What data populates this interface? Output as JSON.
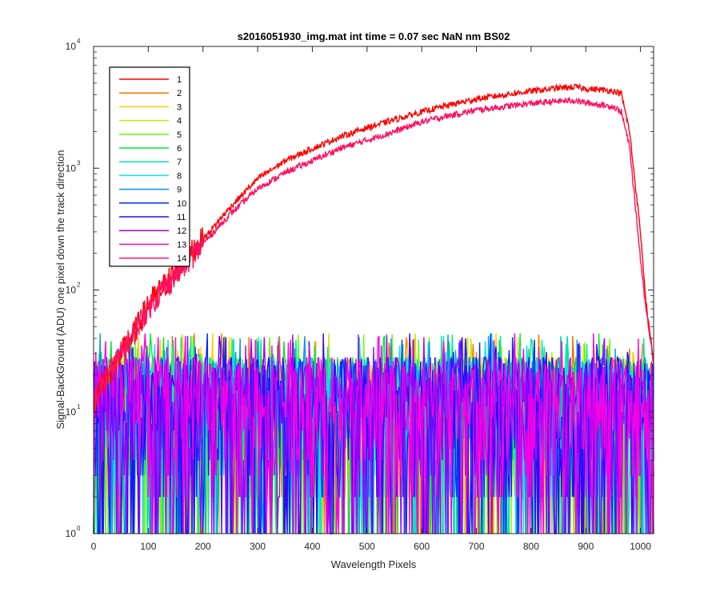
{
  "chart_data": {
    "type": "line",
    "title": "s2016051930_img.mat int time = 0.07 sec  NaN nm BS02",
    "xlabel": "Wavelength Pixels",
    "ylabel": "Signal-BackGround (ADU) one pixel down the track direction",
    "xlim": [
      0,
      1024
    ],
    "ylim": [
      1,
      10000
    ],
    "yscale": "log",
    "x_ticks": [
      "0",
      "100",
      "200",
      "300",
      "400",
      "500",
      "600",
      "700",
      "800",
      "900",
      "1000"
    ],
    "y_ticks": [
      {
        "base": "10",
        "exp": "0"
      },
      {
        "base": "10",
        "exp": "1"
      },
      {
        "base": "10",
        "exp": "2"
      },
      {
        "base": "10",
        "exp": "3"
      },
      {
        "base": "10",
        "exp": "4"
      }
    ],
    "grid": false,
    "legend_position": "top-left",
    "signal_profile": {
      "x": [
        0,
        20,
        40,
        60,
        80,
        100,
        130,
        160,
        200,
        250,
        300,
        350,
        400,
        450,
        500,
        550,
        600,
        650,
        700,
        750,
        800,
        850,
        880,
        900,
        930,
        950,
        965,
        980,
        1000,
        1010,
        1020,
        1024
      ],
      "series_1": [
        12,
        18,
        25,
        35,
        50,
        75,
        110,
        160,
        260,
        480,
        820,
        1150,
        1450,
        1800,
        2150,
        2500,
        2900,
        3300,
        3700,
        4000,
        4300,
        4550,
        4650,
        4500,
        4400,
        4300,
        4100,
        2000,
        300,
        80,
        35,
        25
      ],
      "series_14": [
        12,
        18,
        25,
        35,
        50,
        72,
        105,
        150,
        240,
        420,
        680,
        920,
        1150,
        1450,
        1700,
        2000,
        2400,
        2700,
        3000,
        3200,
        3400,
        3550,
        3600,
        3450,
        3300,
        3200,
        2900,
        1500,
        180,
        70,
        35,
        25
      ]
    },
    "noise_floor_range": [
      1,
      45
    ],
    "series": [
      {
        "name": "1",
        "color": "#ff0000",
        "kind": "signal"
      },
      {
        "name": "2",
        "color": "#ff6f00",
        "kind": "noise"
      },
      {
        "name": "3",
        "color": "#ffd000",
        "kind": "noise"
      },
      {
        "name": "4",
        "color": "#c8e600",
        "kind": "noise"
      },
      {
        "name": "5",
        "color": "#5cff00",
        "kind": "noise"
      },
      {
        "name": "6",
        "color": "#00e83a",
        "kind": "noise"
      },
      {
        "name": "7",
        "color": "#00e8a0",
        "kind": "noise"
      },
      {
        "name": "8",
        "color": "#00e5ee",
        "kind": "noise"
      },
      {
        "name": "9",
        "color": "#0096ff",
        "kind": "noise"
      },
      {
        "name": "10",
        "color": "#0028ff",
        "kind": "noise"
      },
      {
        "name": "11",
        "color": "#3a00ff",
        "kind": "noise"
      },
      {
        "name": "12",
        "color": "#a000ff",
        "kind": "noise"
      },
      {
        "name": "13",
        "color": "#ff00e0",
        "kind": "noise"
      },
      {
        "name": "14",
        "color": "#ff1060",
        "kind": "signal"
      }
    ]
  }
}
